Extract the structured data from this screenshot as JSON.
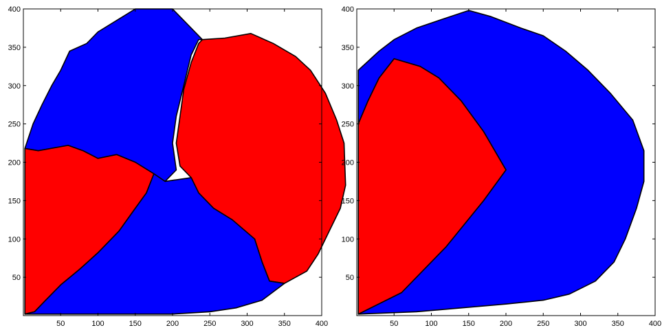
{
  "chart_data": [
    {
      "type": "area",
      "title": "",
      "xlabel": "",
      "ylabel": "",
      "xlim": [
        0,
        400
      ],
      "ylim": [
        0,
        400
      ],
      "xticks": [
        50,
        100,
        150,
        200,
        250,
        300,
        350,
        400
      ],
      "yticks": [
        50,
        100,
        150,
        200,
        250,
        300,
        350,
        400
      ],
      "xtick_labels": [
        "50",
        "100",
        "150",
        "200",
        "250",
        "300",
        "350",
        "400"
      ],
      "ytick_labels": [
        "50",
        "100",
        "150",
        "200",
        "250",
        "300",
        "350",
        "400"
      ],
      "grid": false,
      "regions": [
        {
          "color": "#0000ff",
          "points": [
            [
              240,
              360
            ],
            [
              200,
              400
            ],
            [
              150,
              400
            ],
            [
              130,
              388
            ],
            [
              100,
              370
            ],
            [
              85,
              355
            ],
            [
              62,
              345
            ],
            [
              50,
              320
            ],
            [
              38,
              300
            ],
            [
              25,
              275
            ],
            [
              13,
              250
            ],
            [
              2,
              218
            ],
            [
              20,
              215
            ],
            [
              60,
              222
            ],
            [
              80,
              215
            ],
            [
              100,
              205
            ],
            [
              125,
              210
            ],
            [
              150,
              200
            ],
            [
              175,
              185
            ],
            [
              190,
              175
            ],
            [
              205,
              190
            ],
            [
              200,
              225
            ],
            [
              205,
              260
            ],
            [
              215,
              300
            ],
            [
              225,
              340
            ],
            [
              235,
              360
            ]
          ]
        },
        {
          "color": "#ff0000",
          "points": [
            [
              240,
              360
            ],
            [
              270,
              362
            ],
            [
              305,
              368
            ],
            [
              335,
              355
            ],
            [
              365,
              338
            ],
            [
              385,
              320
            ],
            [
              405,
              290
            ],
            [
              420,
              255
            ],
            [
              430,
              225
            ],
            [
              432,
              170
            ],
            [
              425,
              140
            ],
            [
              410,
              110
            ],
            [
              395,
              80
            ],
            [
              380,
              58
            ],
            [
              350,
              42
            ],
            [
              330,
              45
            ],
            [
              320,
              70
            ],
            [
              310,
              100
            ],
            [
              280,
              125
            ],
            [
              255,
              140
            ],
            [
              235,
              160
            ],
            [
              225,
              180
            ],
            [
              210,
              195
            ],
            [
              205,
              225
            ],
            [
              210,
              260
            ],
            [
              215,
              295
            ],
            [
              225,
              330
            ],
            [
              235,
              355
            ]
          ]
        },
        {
          "color": "#ff0000",
          "points": [
            [
              2,
              218
            ],
            [
              20,
              215
            ],
            [
              60,
              222
            ],
            [
              80,
              215
            ],
            [
              100,
              205
            ],
            [
              125,
              210
            ],
            [
              150,
              200
            ],
            [
              175,
              185
            ],
            [
              165,
              160
            ],
            [
              150,
              140
            ],
            [
              128,
              110
            ],
            [
              100,
              82
            ],
            [
              75,
              60
            ],
            [
              50,
              40
            ],
            [
              30,
              20
            ],
            [
              15,
              5
            ],
            [
              2,
              2
            ]
          ]
        },
        {
          "color": "#0000ff",
          "points": [
            [
              2,
              2
            ],
            [
              15,
              5
            ],
            [
              30,
              20
            ],
            [
              50,
              40
            ],
            [
              75,
              60
            ],
            [
              100,
              82
            ],
            [
              128,
              110
            ],
            [
              150,
              140
            ],
            [
              165,
              160
            ],
            [
              175,
              185
            ],
            [
              190,
              175
            ],
            [
              225,
              180
            ],
            [
              235,
              160
            ],
            [
              255,
              140
            ],
            [
              280,
              125
            ],
            [
              310,
              100
            ],
            [
              320,
              70
            ],
            [
              330,
              45
            ],
            [
              350,
              42
            ],
            [
              320,
              20
            ],
            [
              285,
              10
            ],
            [
              250,
              5
            ],
            [
              200,
              2
            ],
            [
              150,
              2
            ],
            [
              80,
              2
            ],
            [
              30,
              2
            ]
          ]
        }
      ]
    },
    {
      "type": "area",
      "title": "",
      "xlabel": "",
      "ylabel": "",
      "xlim": [
        0,
        400
      ],
      "ylim": [
        0,
        400
      ],
      "xticks": [
        50,
        100,
        150,
        200,
        250,
        300,
        350,
        400
      ],
      "yticks": [
        50,
        100,
        150,
        200,
        250,
        300,
        350,
        400
      ],
      "xtick_labels": [
        "50",
        "100",
        "150",
        "200",
        "250",
        "300",
        "350",
        "400"
      ],
      "ytick_labels": [
        "50",
        "100",
        "150",
        "200",
        "250",
        "300",
        "350",
        "400"
      ],
      "grid": false,
      "regions": [
        {
          "color": "#0000ff",
          "points": [
            [
              2,
              2
            ],
            [
              60,
              30
            ],
            [
              120,
              90
            ],
            [
              170,
              150
            ],
            [
              200,
              190
            ],
            [
              170,
              240
            ],
            [
              140,
              280
            ],
            [
              110,
              310
            ],
            [
              85,
              325
            ],
            [
              50,
              335
            ],
            [
              30,
              310
            ],
            [
              15,
              280
            ],
            [
              2,
              250
            ],
            [
              2,
              320
            ],
            [
              30,
              345
            ],
            [
              50,
              360
            ],
            [
              80,
              375
            ],
            [
              110,
              385
            ],
            [
              150,
              398
            ],
            [
              180,
              390
            ],
            [
              220,
              375
            ],
            [
              250,
              365
            ],
            [
              280,
              345
            ],
            [
              310,
              320
            ],
            [
              340,
              290
            ],
            [
              370,
              255
            ],
            [
              385,
              215
            ],
            [
              385,
              175
            ],
            [
              375,
              140
            ],
            [
              360,
              100
            ],
            [
              345,
              70
            ],
            [
              320,
              45
            ],
            [
              285,
              28
            ],
            [
              250,
              20
            ],
            [
              200,
              15
            ],
            [
              140,
              10
            ],
            [
              80,
              5
            ]
          ]
        },
        {
          "color": "#ff0000",
          "points": [
            [
              2,
              2
            ],
            [
              60,
              30
            ],
            [
              120,
              90
            ],
            [
              170,
              150
            ],
            [
              200,
              190
            ],
            [
              170,
              240
            ],
            [
              140,
              280
            ],
            [
              110,
              310
            ],
            [
              85,
              325
            ],
            [
              50,
              335
            ],
            [
              30,
              310
            ],
            [
              15,
              280
            ],
            [
              2,
              250
            ]
          ]
        }
      ]
    }
  ]
}
